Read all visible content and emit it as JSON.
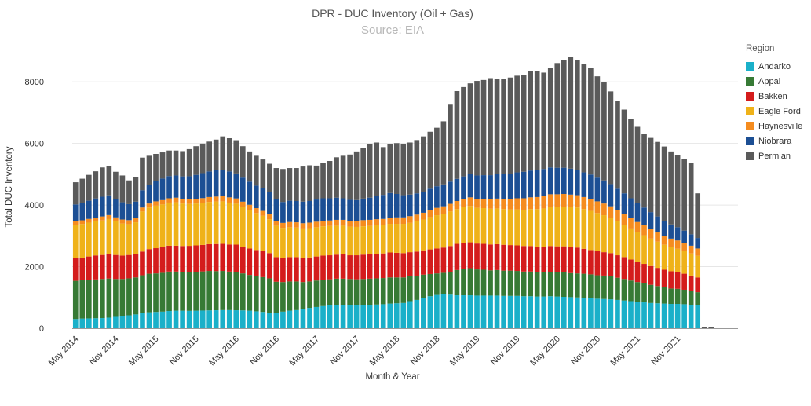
{
  "chart_data": {
    "type": "bar",
    "stacked": true,
    "title": "DPR - DUC Inventory (Oil + Gas)",
    "subtitle": "Source: EIA",
    "xlabel": "Month & Year",
    "ylabel": "Total DUC Inventory",
    "ylim": [
      0,
      9000
    ],
    "yticks": [
      0,
      2000,
      4000,
      6000,
      8000
    ],
    "grid": true,
    "legend_title": "Region",
    "legend_position": "right",
    "x_ticks": [
      {
        "month": "2014-05",
        "label": "May 2014"
      },
      {
        "month": "2014-11",
        "label": "Nov 2014"
      },
      {
        "month": "2015-05",
        "label": "May 2015"
      },
      {
        "month": "2015-11",
        "label": "Nov 2015"
      },
      {
        "month": "2016-05",
        "label": "May 2016"
      },
      {
        "month": "2016-11",
        "label": "Nov 2016"
      },
      {
        "month": "2017-05",
        "label": "May 2017"
      },
      {
        "month": "2017-11",
        "label": "Nov 2017"
      },
      {
        "month": "2018-05",
        "label": "May 2018"
      },
      {
        "month": "2018-11",
        "label": "Nov 2018"
      },
      {
        "month": "2019-05",
        "label": "May 2019"
      },
      {
        "month": "2019-11",
        "label": "Nov 2019"
      },
      {
        "month": "2020-05",
        "label": "May 2020"
      },
      {
        "month": "2020-11",
        "label": "Nov 2020"
      },
      {
        "month": "2021-05",
        "label": "May 2021"
      },
      {
        "month": "2021-11",
        "label": "Nov 2021"
      }
    ],
    "categories": [
      "2014-05",
      "2014-06",
      "2014-07",
      "2014-08",
      "2014-09",
      "2014-10",
      "2014-11",
      "2014-12",
      "2015-01",
      "2015-02",
      "2015-03",
      "2015-04",
      "2015-05",
      "2015-06",
      "2015-07",
      "2015-08",
      "2015-09",
      "2015-10",
      "2015-11",
      "2015-12",
      "2016-01",
      "2016-02",
      "2016-03",
      "2016-04",
      "2016-05",
      "2016-06",
      "2016-07",
      "2016-08",
      "2016-09",
      "2016-10",
      "2016-11",
      "2016-12",
      "2017-01",
      "2017-02",
      "2017-03",
      "2017-04",
      "2017-05",
      "2017-06",
      "2017-07",
      "2017-08",
      "2017-09",
      "2017-10",
      "2017-11",
      "2017-12",
      "2018-01",
      "2018-02",
      "2018-03",
      "2018-04",
      "2018-05",
      "2018-06",
      "2018-07",
      "2018-08",
      "2018-09",
      "2018-10",
      "2018-11",
      "2018-12",
      "2019-01",
      "2019-02",
      "2019-03",
      "2019-04",
      "2019-05",
      "2019-06",
      "2019-07",
      "2019-08",
      "2019-09",
      "2019-10",
      "2019-11",
      "2019-12",
      "2020-01",
      "2020-02",
      "2020-03",
      "2020-04",
      "2020-05",
      "2020-06",
      "2020-07",
      "2020-08",
      "2020-09",
      "2020-10",
      "2020-11",
      "2020-12",
      "2021-01",
      "2021-02",
      "2021-03",
      "2021-04",
      "2021-05",
      "2021-06",
      "2021-07",
      "2021-08",
      "2021-09",
      "2021-10",
      "2021-11",
      "2021-12",
      "2022-01",
      "2022-02",
      "2022-03",
      "2022-04"
    ],
    "series": [
      {
        "name": "Andarko",
        "color": "#1ab0c9",
        "values": [
          300,
          315,
          320,
          325,
          330,
          345,
          370,
          400,
          420,
          450,
          510,
          520,
          530,
          540,
          560,
          570,
          570,
          565,
          570,
          575,
          580,
          585,
          590,
          590,
          585,
          580,
          570,
          550,
          530,
          500,
          500,
          540,
          570,
          590,
          620,
          660,
          690,
          720,
          740,
          760,
          760,
          740,
          740,
          750,
          760,
          770,
          780,
          800,
          810,
          820,
          880,
          920,
          980,
          1040,
          1080,
          1100,
          1090,
          1070,
          1070,
          1070,
          1060,
          1060,
          1060,
          1060,
          1050,
          1050,
          1050,
          1040,
          1040,
          1030,
          1030,
          1040,
          1030,
          1020,
          1010,
          1000,
          990,
          980,
          960,
          950,
          940,
          920,
          900,
          880,
          860,
          840,
          820,
          810,
          800,
          790,
          790,
          780,
          760,
          740,
          0,
          0
        ]
      },
      {
        "name": "Appal",
        "color": "#377a35",
        "values": [
          1240,
          1240,
          1250,
          1260,
          1270,
          1270,
          1230,
          1200,
          1200,
          1200,
          1210,
          1250,
          1250,
          1260,
          1280,
          1270,
          1250,
          1260,
          1260,
          1270,
          1280,
          1270,
          1270,
          1250,
          1250,
          1200,
          1160,
          1140,
          1130,
          1120,
          1010,
          960,
          950,
          930,
          880,
          860,
          860,
          860,
          850,
          850,
          850,
          860,
          850,
          850,
          850,
          850,
          850,
          850,
          840,
          830,
          810,
          780,
          760,
          720,
          700,
          700,
          740,
          820,
          850,
          880,
          850,
          840,
          820,
          830,
          820,
          820,
          810,
          800,
          800,
          790,
          780,
          790,
          790,
          790,
          780,
          780,
          780,
          770,
          760,
          760,
          750,
          720,
          700,
          670,
          640,
          620,
          590,
          560,
          530,
          500,
          490,
          470,
          450,
          430,
          0,
          0
        ]
      },
      {
        "name": "Bakken",
        "color": "#d41c1c",
        "values": [
          740,
          740,
          760,
          780,
          780,
          800,
          780,
          760,
          760,
          760,
          770,
          800,
          820,
          830,
          840,
          840,
          850,
          850,
          860,
          860,
          870,
          880,
          880,
          880,
          880,
          870,
          860,
          850,
          840,
          820,
          800,
          780,
          790,
          790,
          780,
          780,
          780,
          780,
          780,
          780,
          790,
          770,
          780,
          790,
          790,
          800,
          800,
          810,
          800,
          790,
          780,
          790,
          790,
          800,
          810,
          820,
          840,
          850,
          850,
          840,
          840,
          840,
          840,
          840,
          840,
          830,
          830,
          830,
          830,
          830,
          830,
          840,
          840,
          850,
          850,
          840,
          810,
          790,
          780,
          760,
          750,
          730,
          710,
          680,
          650,
          630,
          610,
          590,
          570,
          560,
          540,
          520,
          500,
          480,
          0,
          0
        ]
      },
      {
        "name": "Eagle Ford",
        "color": "#efb219",
        "values": [
          1080,
          1090,
          1100,
          1110,
          1120,
          1130,
          1090,
          1040,
          1000,
          1030,
          1300,
          1350,
          1380,
          1390,
          1400,
          1410,
          1380,
          1360,
          1360,
          1360,
          1370,
          1380,
          1380,
          1360,
          1330,
          1300,
          1260,
          1200,
          1150,
          1100,
          1020,
          980,
          970,
          960,
          960,
          950,
          950,
          950,
          950,
          940,
          930,
          930,
          920,
          920,
          920,
          920,
          920,
          930,
          940,
          950,
          950,
          980,
          1000,
          1050,
          1080,
          1100,
          1120,
          1130,
          1160,
          1180,
          1160,
          1160,
          1160,
          1160,
          1160,
          1160,
          1170,
          1180,
          1200,
          1220,
          1250,
          1270,
          1280,
          1290,
          1300,
          1300,
          1290,
          1270,
          1240,
          1200,
          1150,
          1100,
          1050,
          1010,
          970,
          930,
          890,
          850,
          810,
          780,
          760,
          740,
          720,
          700,
          0,
          0
        ]
      },
      {
        "name": "Haynesville",
        "color": "#f58c1f",
        "values": [
          120,
          120,
          120,
          120,
          130,
          130,
          130,
          130,
          130,
          130,
          130,
          130,
          140,
          140,
          140,
          150,
          150,
          150,
          150,
          160,
          160,
          160,
          170,
          170,
          170,
          160,
          160,
          160,
          160,
          160,
          160,
          160,
          170,
          170,
          170,
          180,
          180,
          180,
          180,
          190,
          190,
          190,
          190,
          200,
          200,
          200,
          200,
          200,
          210,
          210,
          220,
          220,
          220,
          230,
          240,
          240,
          250,
          260,
          270,
          280,
          290,
          300,
          310,
          320,
          330,
          340,
          360,
          370,
          380,
          390,
          400,
          410,
          410,
          410,
          400,
          400,
          390,
          390,
          380,
          380,
          370,
          360,
          350,
          340,
          330,
          320,
          310,
          300,
          290,
          280,
          270,
          260,
          250,
          240,
          0,
          0
        ]
      },
      {
        "name": "Niobrara",
        "color": "#1c4f94",
        "values": [
          540,
          560,
          590,
          620,
          640,
          640,
          600,
          560,
          520,
          540,
          560,
          600,
          660,
          700,
          720,
          720,
          730,
          750,
          780,
          810,
          830,
          850,
          860,
          840,
          810,
          780,
          750,
          730,
          730,
          730,
          700,
          680,
          690,
          690,
          700,
          700,
          720,
          730,
          720,
          720,
          700,
          680,
          680,
          700,
          720,
          760,
          780,
          800,
          760,
          720,
          700,
          690,
          680,
          690,
          700,
          710,
          720,
          720,
          730,
          750,
          760,
          770,
          780,
          790,
          800,
          820,
          840,
          860,
          870,
          880,
          880,
          870,
          860,
          850,
          840,
          820,
          800,
          790,
          770,
          750,
          720,
          700,
          670,
          640,
          610,
          580,
          550,
          520,
          490,
          460,
          430,
          400,
          370,
          340,
          0,
          0
        ]
      },
      {
        "name": "Permian",
        "color": "#5a5a5a",
        "values": [
          720,
          790,
          840,
          880,
          950,
          960,
          880,
          870,
          770,
          810,
          1060,
          950,
          880,
          850,
          830,
          810,
          820,
          880,
          930,
          960,
          970,
          1000,
          1080,
          1080,
          1080,
          1020,
          980,
          970,
          940,
          910,
          1010,
          1070,
          1060,
          1070,
          1140,
          1160,
          1100,
          1150,
          1210,
          1310,
          1380,
          1470,
          1580,
          1650,
          1730,
          1730,
          1550,
          1600,
          1650,
          1670,
          1690,
          1730,
          1800,
          1850,
          1900,
          2050,
          2500,
          2850,
          2900,
          2950,
          3070,
          3090,
          3150,
          3100,
          3090,
          3120,
          3140,
          3150,
          3220,
          3220,
          3130,
          3230,
          3400,
          3500,
          3620,
          3560,
          3530,
          3450,
          3290,
          3180,
          3010,
          2840,
          2720,
          2570,
          2480,
          2390,
          2410,
          2420,
          2410,
          2370,
          2330,
          2320,
          2310,
          1450,
          50,
          40
        ]
      }
    ]
  }
}
